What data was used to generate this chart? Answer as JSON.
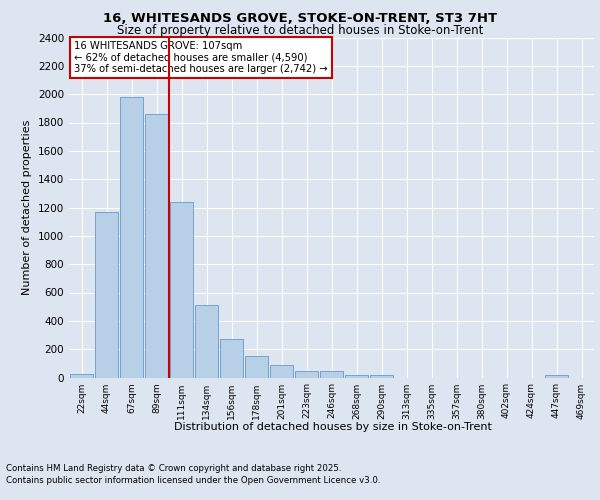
{
  "title_line1": "16, WHITESANDS GROVE, STOKE-ON-TRENT, ST3 7HT",
  "title_line2": "Size of property relative to detached houses in Stoke-on-Trent",
  "xlabel": "Distribution of detached houses by size in Stoke-on-Trent",
  "ylabel": "Number of detached properties",
  "categories": [
    "22sqm",
    "44sqm",
    "67sqm",
    "89sqm",
    "111sqm",
    "134sqm",
    "156sqm",
    "178sqm",
    "201sqm",
    "223sqm",
    "246sqm",
    "268sqm",
    "290sqm",
    "313sqm",
    "335sqm",
    "357sqm",
    "380sqm",
    "402sqm",
    "424sqm",
    "447sqm",
    "469sqm"
  ],
  "values": [
    25,
    1170,
    1980,
    1860,
    1240,
    510,
    275,
    150,
    90,
    45,
    45,
    20,
    20,
    0,
    0,
    0,
    0,
    0,
    0,
    20,
    0
  ],
  "bar_color": "#b8cfe8",
  "bar_edge_color": "#6699cc",
  "vline_color": "#cc0000",
  "annotation_text": "16 WHITESANDS GROVE: 107sqm\n← 62% of detached houses are smaller (4,590)\n37% of semi-detached houses are larger (2,742) →",
  "annotation_box_color": "white",
  "annotation_box_edge_color": "#cc0000",
  "ylim": [
    0,
    2400
  ],
  "yticks": [
    0,
    200,
    400,
    600,
    800,
    1000,
    1200,
    1400,
    1600,
    1800,
    2000,
    2200,
    2400
  ],
  "footer_line1": "Contains HM Land Registry data © Crown copyright and database right 2025.",
  "footer_line2": "Contains public sector information licensed under the Open Government Licence v3.0.",
  "bg_color": "#dde5f0",
  "plot_bg_color": "#dde5f0"
}
